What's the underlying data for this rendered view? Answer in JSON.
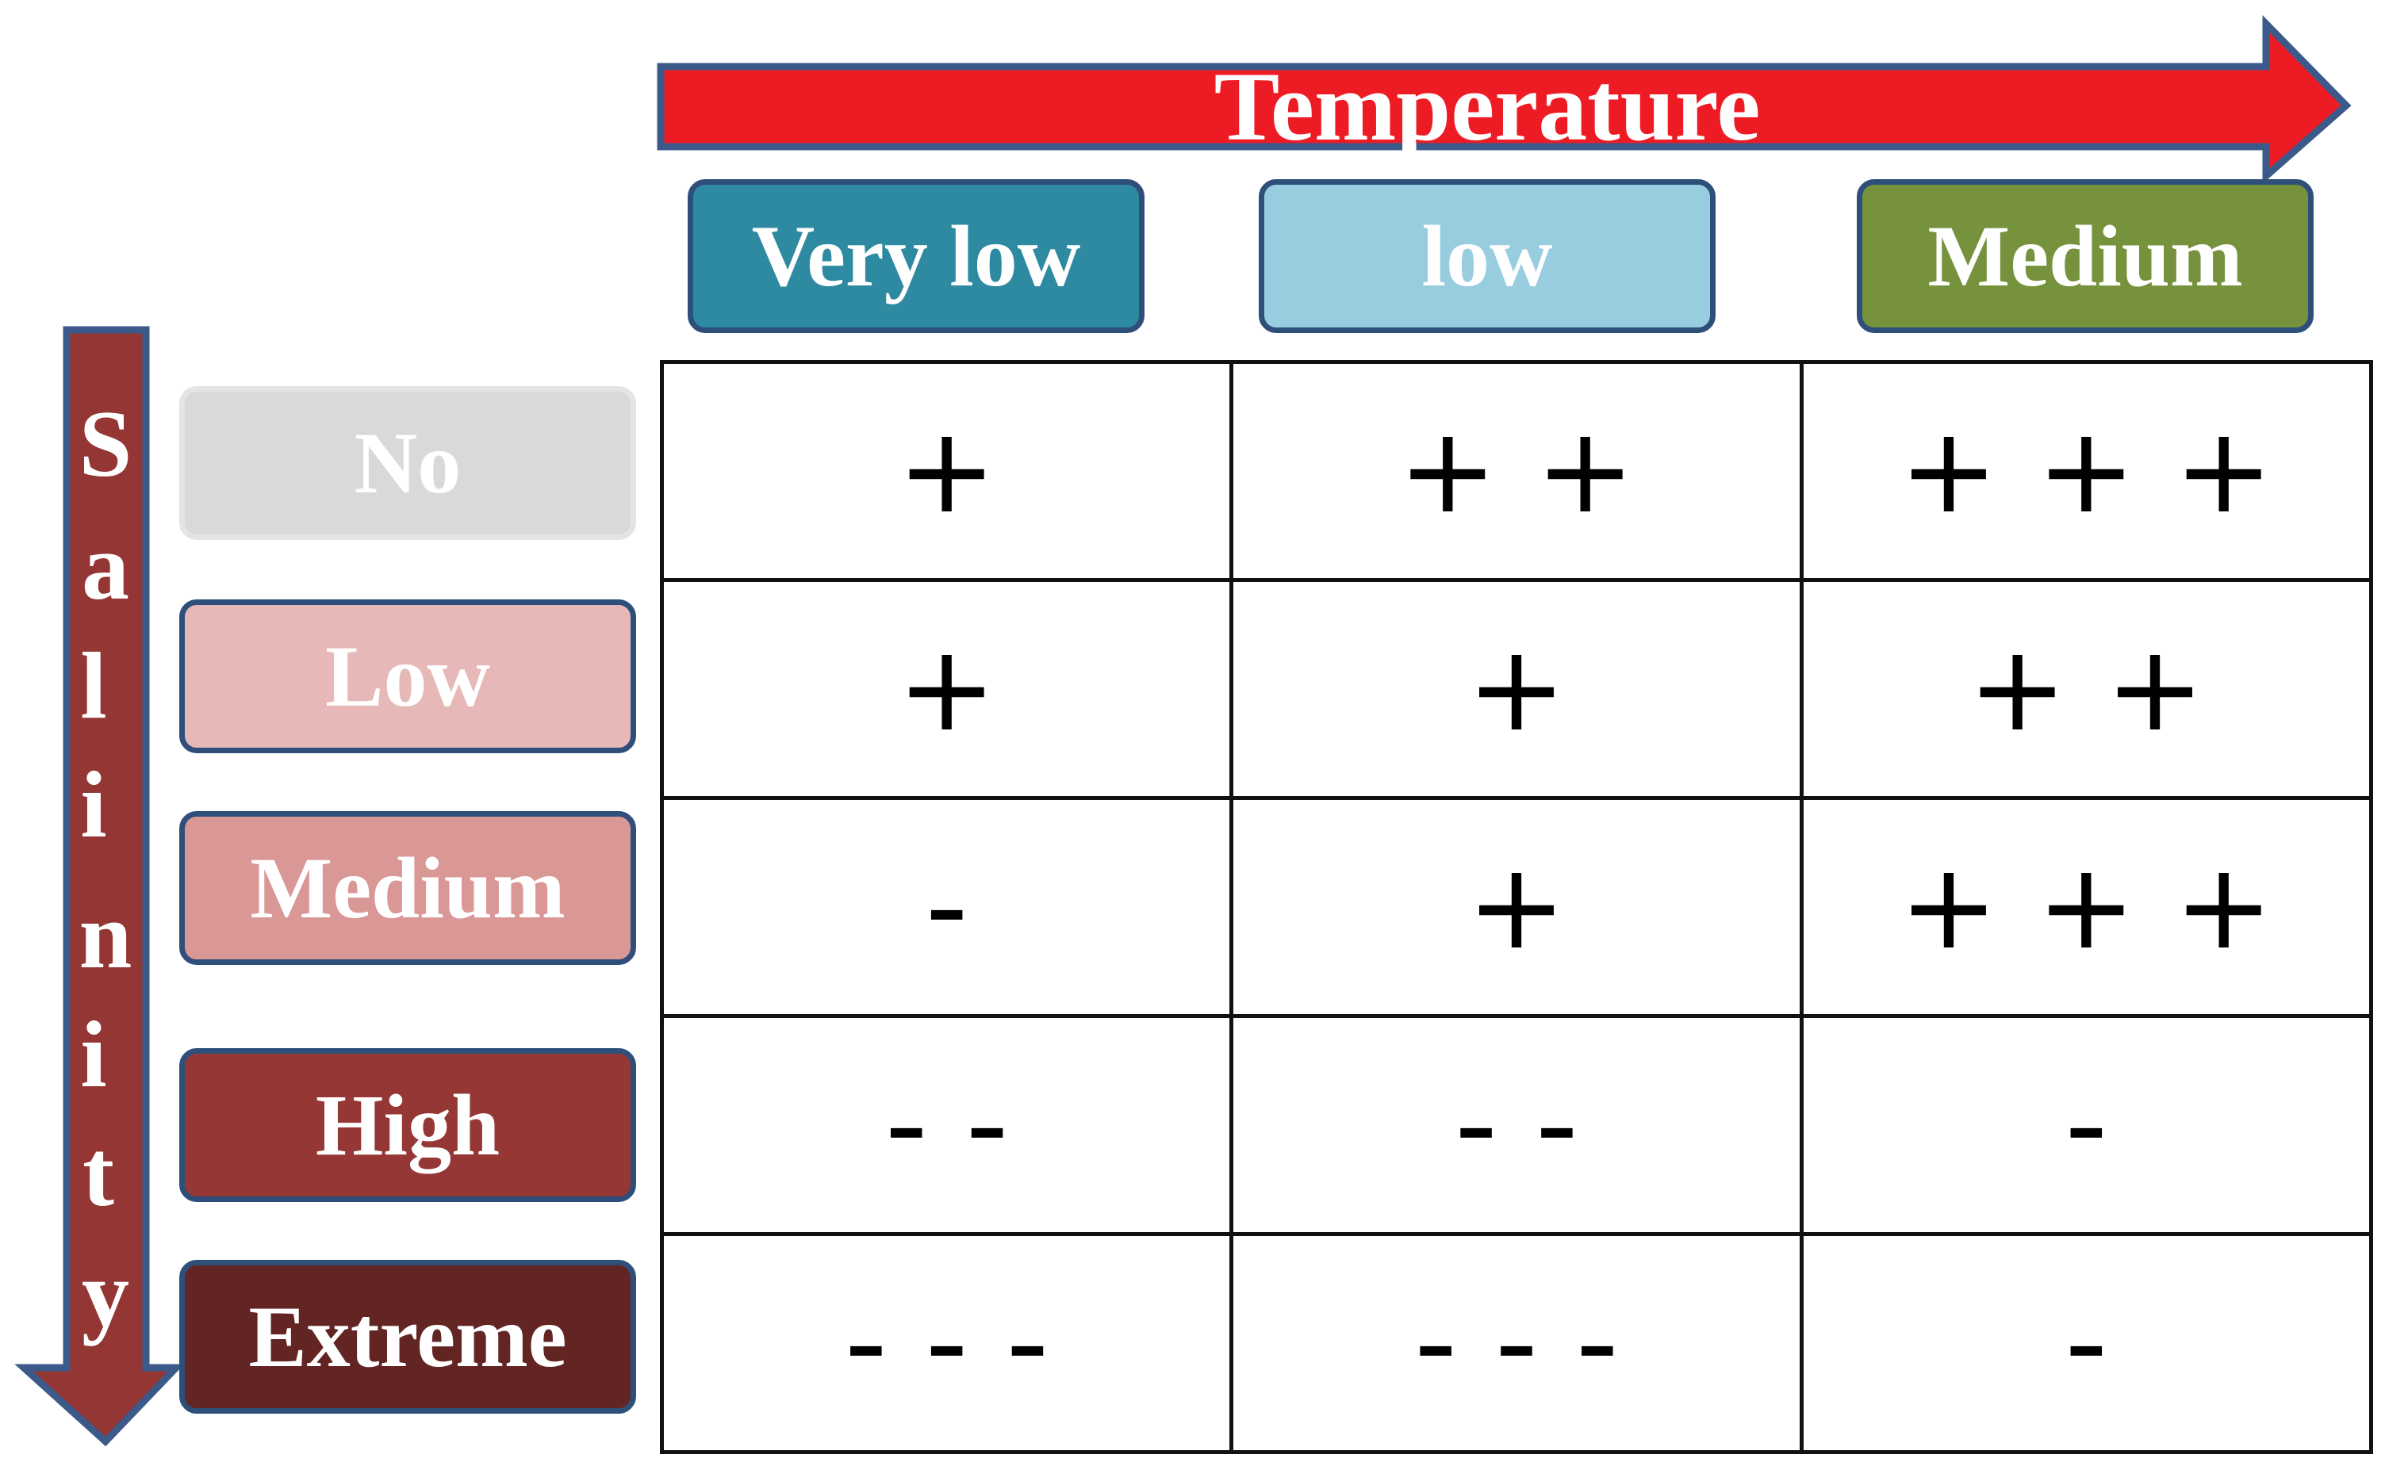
{
  "temperature_axis": {
    "label": "Temperature",
    "levels": [
      "Very low",
      "low",
      "Medium"
    ]
  },
  "salinity_axis": {
    "label": "Salinity",
    "letters": [
      "S",
      "a",
      "l",
      "i",
      "n",
      "i",
      "t",
      "y"
    ],
    "levels": [
      "No",
      "Low",
      "Medium",
      "High",
      "Extreme"
    ]
  },
  "effects": [
    [
      "+",
      "+ +",
      "+ + +"
    ],
    [
      "+",
      "+",
      "+ +"
    ],
    [
      "-",
      "+",
      "+ + +"
    ],
    [
      "- -",
      "- -",
      "-"
    ],
    [
      "- - -",
      "- - -",
      "-"
    ]
  ],
  "colors": {
    "temperature_arrow": "#ed1c24",
    "salinity_arrow": "#943634",
    "arrow_border": "#3b5a8a",
    "temp_very_low": "#2e8aa0",
    "temp_low": "#98cde0",
    "temp_medium": "#76923c",
    "sal_no": "#d9d9d9",
    "sal_low": "#e6b8b7",
    "sal_medium": "#d99796",
    "sal_high": "#953735",
    "sal_extreme": "#632523"
  }
}
